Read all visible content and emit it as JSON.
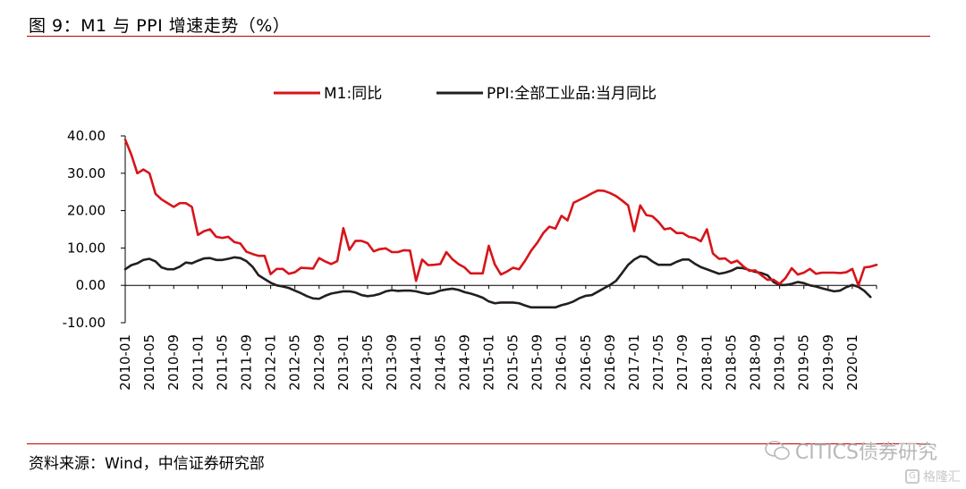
{
  "figure": {
    "title": "图 9：M1 与 PPI 增速走势（%）",
    "source": "资料来源：Wind，中信证券研究部",
    "watermark": "CITICS债券研究",
    "logo_text": "格隆汇",
    "logo_mark": "G"
  },
  "chart_data": {
    "type": "line",
    "title": "",
    "xlabel": "",
    "ylabel": "",
    "ylim": [
      -10,
      40
    ],
    "yticks": [
      40,
      30,
      20,
      10,
      0,
      -10
    ],
    "ytick_labels": [
      "40.00",
      "30.00",
      "20.00",
      "10.00",
      "0.00",
      "-10.00"
    ],
    "xtick_labels": [
      "2010-01",
      "2010-05",
      "2010-09",
      "2011-01",
      "2011-05",
      "2011-09",
      "2012-01",
      "2012-05",
      "2012-09",
      "2013-01",
      "2013-05",
      "2013-09",
      "2014-01",
      "2014-05",
      "2014-09",
      "2015-01",
      "2015-05",
      "2015-09",
      "2016-01",
      "2016-05",
      "2016-09",
      "2017-01",
      "2017-05",
      "2017-09",
      "2018-01",
      "2018-05",
      "2018-09",
      "2019-01",
      "2019-05",
      "2019-09",
      "2020-01"
    ],
    "x_start": "2010-01",
    "x_end": "2020-04",
    "series": [
      {
        "name": "M1:同比",
        "color": "#d7141a",
        "values": [
          39.0,
          35.0,
          30.0,
          31.0,
          30.0,
          24.5,
          23.0,
          22.0,
          21.0,
          22.0,
          22.0,
          21.0,
          13.5,
          14.5,
          15.0,
          13.0,
          12.7,
          13.0,
          11.6,
          11.2,
          9.0,
          8.4,
          7.9,
          7.9,
          3.0,
          4.4,
          4.4,
          3.1,
          3.5,
          4.7,
          4.6,
          4.5,
          7.3,
          6.4,
          5.7,
          6.5,
          15.3,
          9.5,
          11.9,
          11.9,
          11.3,
          9.1,
          9.7,
          9.9,
          8.9,
          8.9,
          9.4,
          9.3,
          1.2,
          6.9,
          5.4,
          5.5,
          5.7,
          8.9,
          7.0,
          5.7,
          4.8,
          3.2,
          3.2,
          3.2,
          10.6,
          5.6,
          2.9,
          3.7,
          4.7,
          4.3,
          6.6,
          9.3,
          11.4,
          14.0,
          15.7,
          15.2,
          18.6,
          17.4,
          22.1,
          22.9,
          23.7,
          24.6,
          25.4,
          25.3,
          24.7,
          23.9,
          22.7,
          21.4,
          14.5,
          21.4,
          18.8,
          18.5,
          17.0,
          15.0,
          15.3,
          14.0,
          14.0,
          13.0,
          12.7,
          11.8,
          15.0,
          8.5,
          7.1,
          7.2,
          6.0,
          6.6,
          5.1,
          3.9,
          4.0,
          2.7,
          1.5,
          1.5,
          0.4,
          2.0,
          4.6,
          2.9,
          3.4,
          4.4,
          3.1,
          3.4,
          3.4,
          3.4,
          3.3,
          3.5,
          4.4,
          0.0,
          4.8,
          5.0,
          5.5
        ]
      },
      {
        "name": "PPI:全部工业品:当月同比",
        "color": "#231f1c",
        "values": [
          4.3,
          5.4,
          5.9,
          6.8,
          7.1,
          6.4,
          4.8,
          4.3,
          4.3,
          5.0,
          6.1,
          5.9,
          6.6,
          7.2,
          7.3,
          6.8,
          6.8,
          7.1,
          7.5,
          7.3,
          6.5,
          5.0,
          2.7,
          1.7,
          0.7,
          0.0,
          -0.3,
          -0.7,
          -1.4,
          -2.1,
          -2.9,
          -3.5,
          -3.6,
          -2.8,
          -2.2,
          -1.9,
          -1.6,
          -1.6,
          -1.9,
          -2.6,
          -2.9,
          -2.7,
          -2.3,
          -1.6,
          -1.3,
          -1.5,
          -1.4,
          -1.4,
          -1.6,
          -2.0,
          -2.3,
          -2.0,
          -1.4,
          -1.1,
          -0.9,
          -1.2,
          -1.8,
          -2.2,
          -2.7,
          -3.3,
          -4.3,
          -4.8,
          -4.6,
          -4.6,
          -4.6,
          -4.8,
          -5.4,
          -5.9,
          -5.9,
          -5.9,
          -5.9,
          -5.9,
          -5.3,
          -4.9,
          -4.3,
          -3.4,
          -2.8,
          -2.6,
          -1.7,
          -0.8,
          0.1,
          1.2,
          3.3,
          5.5,
          6.9,
          7.8,
          7.6,
          6.4,
          5.5,
          5.5,
          5.5,
          6.3,
          6.9,
          6.9,
          5.8,
          4.9,
          4.3,
          3.7,
          3.1,
          3.4,
          3.9,
          4.7,
          4.6,
          4.1,
          3.6,
          3.3,
          2.7,
          0.9,
          0.1,
          0.1,
          0.4,
          0.9,
          0.6,
          0.0,
          -0.3,
          -0.8,
          -1.2,
          -1.6,
          -1.4,
          -0.5,
          0.1,
          -0.4,
          -1.5,
          -3.1
        ]
      }
    ]
  }
}
